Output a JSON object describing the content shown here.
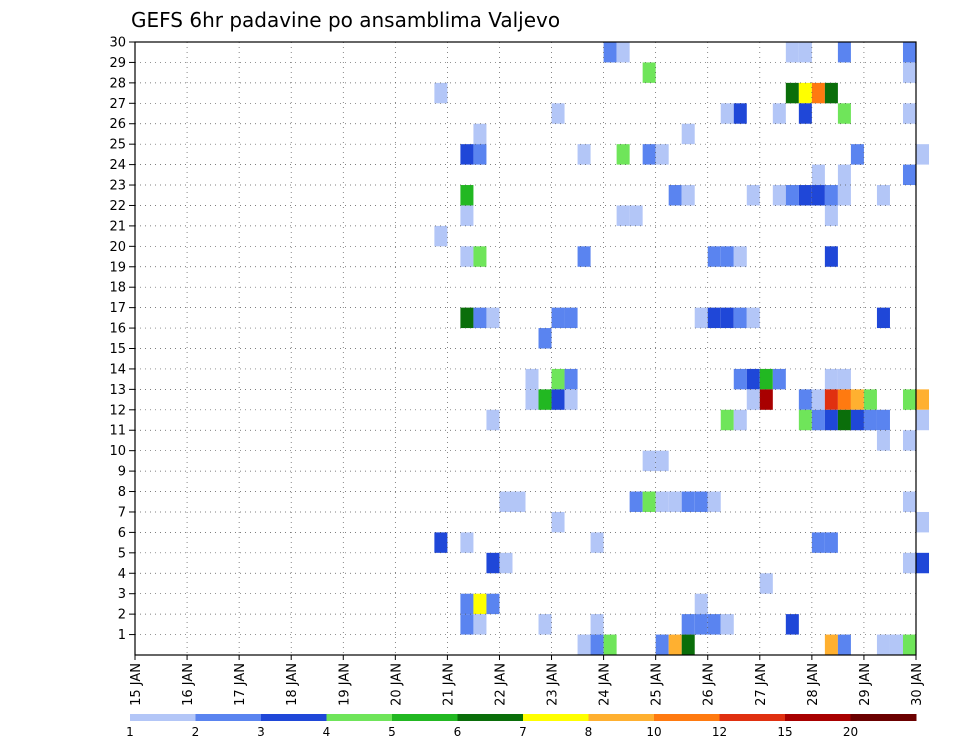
{
  "chart_data": {
    "type": "heatmap",
    "title": "GEFS 6hr padavine po ansamblima Valjevo",
    "xlabel": "",
    "ylabel": "",
    "x_tick_labels": [
      "15 JAN",
      "16 JAN",
      "17 JAN",
      "18 JAN",
      "19 JAN",
      "20 JAN",
      "21 JAN",
      "22 JAN",
      "23 JAN",
      "24 JAN",
      "25 JAN",
      "26 JAN",
      "27 JAN",
      "28 JAN",
      "29 JAN",
      "30 JAN"
    ],
    "y_tick_labels": [
      "1",
      "2",
      "3",
      "4",
      "5",
      "6",
      "7",
      "8",
      "9",
      "10",
      "11",
      "12",
      "13",
      "14",
      "15",
      "16",
      "17",
      "18",
      "19",
      "20",
      "21",
      "22",
      "23",
      "24",
      "25",
      "26",
      "27",
      "28",
      "29",
      "30"
    ],
    "xlim": [
      "15 JAN",
      "30 JAN"
    ],
    "ylim": [
      0,
      30
    ],
    "grid": true,
    "colorbar": {
      "levels": [
        "1",
        "2",
        "3",
        "4",
        "5",
        "6",
        "7",
        "8",
        "10",
        "12",
        "15",
        "20"
      ],
      "colors": [
        "#b3c6f7",
        "#5a84f0",
        "#1f47d8",
        "#6fe55a",
        "#22b822",
        "#0a6e0a",
        "#ffff00",
        "#ffb030",
        "#ff7a10",
        "#e03010",
        "#a80000",
        "#6b0000"
      ]
    },
    "cells": [
      {
        "member": 30,
        "time": "24 JAN 00",
        "level": 2
      },
      {
        "member": 30,
        "time": "24 JAN 06",
        "level": 1
      },
      {
        "member": 30,
        "time": "27 JAN 12",
        "level": 1
      },
      {
        "member": 30,
        "time": "27 JAN 18",
        "level": 1
      },
      {
        "member": 30,
        "time": "28 JAN 12",
        "level": 2
      },
      {
        "member": 30,
        "time": "29 JAN 18",
        "level": 2
      },
      {
        "member": 29,
        "time": "24 JAN 18",
        "level": 4
      },
      {
        "member": 29,
        "time": "29 JAN 18",
        "level": 1
      },
      {
        "member": 28,
        "time": "20 JAN 18",
        "level": 1
      },
      {
        "member": 28,
        "time": "27 JAN 12",
        "level": 6
      },
      {
        "member": 28,
        "time": "27 JAN 18",
        "level": 7
      },
      {
        "member": 28,
        "time": "28 JAN 00",
        "level": 10
      },
      {
        "member": 28,
        "time": "28 JAN 06",
        "level": 6
      },
      {
        "member": 27,
        "time": "23 JAN 00",
        "level": 1
      },
      {
        "member": 27,
        "time": "26 JAN 06",
        "level": 1
      },
      {
        "member": 27,
        "time": "26 JAN 12",
        "level": 3
      },
      {
        "member": 27,
        "time": "27 JAN 06",
        "level": 1
      },
      {
        "member": 27,
        "time": "27 JAN 18",
        "level": 3
      },
      {
        "member": 27,
        "time": "28 JAN 12",
        "level": 4
      },
      {
        "member": 27,
        "time": "29 JAN 18",
        "level": 1
      },
      {
        "member": 26,
        "time": "21 JAN 12",
        "level": 1
      },
      {
        "member": 26,
        "time": "25 JAN 12",
        "level": 1
      },
      {
        "member": 25,
        "time": "21 JAN 06",
        "level": 3
      },
      {
        "member": 25,
        "time": "21 JAN 12",
        "level": 2
      },
      {
        "member": 25,
        "time": "23 JAN 12",
        "level": 1
      },
      {
        "member": 25,
        "time": "24 JAN 06",
        "level": 4
      },
      {
        "member": 25,
        "time": "24 JAN 18",
        "level": 2
      },
      {
        "member": 25,
        "time": "25 JAN 00",
        "level": 1
      },
      {
        "member": 25,
        "time": "28 JAN 18",
        "level": 2
      },
      {
        "member": 25,
        "time": "30 JAN 00",
        "level": 1
      },
      {
        "member": 24,
        "time": "28 JAN 00",
        "level": 1
      },
      {
        "member": 24,
        "time": "28 JAN 12",
        "level": 1
      },
      {
        "member": 24,
        "time": "29 JAN 18",
        "level": 2
      },
      {
        "member": 23,
        "time": "21 JAN 06",
        "level": 5
      },
      {
        "member": 23,
        "time": "25 JAN 06",
        "level": 2
      },
      {
        "member": 23,
        "time": "25 JAN 12",
        "level": 1
      },
      {
        "member": 23,
        "time": "26 JAN 18",
        "level": 1
      },
      {
        "member": 23,
        "time": "27 JAN 06",
        "level": 1
      },
      {
        "member": 23,
        "time": "27 JAN 12",
        "level": 2
      },
      {
        "member": 23,
        "time": "27 JAN 18",
        "level": 3
      },
      {
        "member": 23,
        "time": "28 JAN 00",
        "level": 3
      },
      {
        "member": 23,
        "time": "28 JAN 06",
        "level": 2
      },
      {
        "member": 23,
        "time": "28 JAN 12",
        "level": 1
      },
      {
        "member": 23,
        "time": "29 JAN 06",
        "level": 1
      },
      {
        "member": 22,
        "time": "21 JAN 06",
        "level": 1
      },
      {
        "member": 22,
        "time": "24 JAN 06",
        "level": 1
      },
      {
        "member": 22,
        "time": "24 JAN 12",
        "level": 1
      },
      {
        "member": 22,
        "time": "28 JAN 06",
        "level": 1
      },
      {
        "member": 21,
        "time": "20 JAN 18",
        "level": 1
      },
      {
        "member": 20,
        "time": "21 JAN 06",
        "level": 1
      },
      {
        "member": 20,
        "time": "21 JAN 12",
        "level": 4
      },
      {
        "member": 20,
        "time": "23 JAN 12",
        "level": 2
      },
      {
        "member": 20,
        "time": "26 JAN 00",
        "level": 2
      },
      {
        "member": 20,
        "time": "26 JAN 06",
        "level": 2
      },
      {
        "member": 20,
        "time": "26 JAN 12",
        "level": 1
      },
      {
        "member": 20,
        "time": "28 JAN 06",
        "level": 3
      },
      {
        "member": 17,
        "time": "21 JAN 06",
        "level": 6
      },
      {
        "member": 17,
        "time": "21 JAN 12",
        "level": 2
      },
      {
        "member": 17,
        "time": "21 JAN 18",
        "level": 1
      },
      {
        "member": 17,
        "time": "23 JAN 00",
        "level": 2
      },
      {
        "member": 17,
        "time": "23 JAN 06",
        "level": 2
      },
      {
        "member": 17,
        "time": "25 JAN 18",
        "level": 1
      },
      {
        "member": 17,
        "time": "26 JAN 00",
        "level": 3
      },
      {
        "member": 17,
        "time": "26 JAN 06",
        "level": 3
      },
      {
        "member": 17,
        "time": "26 JAN 12",
        "level": 2
      },
      {
        "member": 17,
        "time": "26 JAN 18",
        "level": 1
      },
      {
        "member": 17,
        "time": "29 JAN 06",
        "level": 3
      },
      {
        "member": 16,
        "time": "22 JAN 18",
        "level": 2
      },
      {
        "member": 14,
        "time": "22 JAN 12",
        "level": 1
      },
      {
        "member": 14,
        "time": "23 JAN 00",
        "level": 4
      },
      {
        "member": 14,
        "time": "23 JAN 06",
        "level": 2
      },
      {
        "member": 14,
        "time": "26 JAN 12",
        "level": 2
      },
      {
        "member": 14,
        "time": "26 JAN 18",
        "level": 3
      },
      {
        "member": 14,
        "time": "27 JAN 00",
        "level": 5
      },
      {
        "member": 14,
        "time": "27 JAN 06",
        "level": 2
      },
      {
        "member": 14,
        "time": "28 JAN 06",
        "level": 1
      },
      {
        "member": 14,
        "time": "28 JAN 12",
        "level": 1
      },
      {
        "member": 13,
        "time": "22 JAN 12",
        "level": 1
      },
      {
        "member": 13,
        "time": "22 JAN 18",
        "level": 5
      },
      {
        "member": 13,
        "time": "23 JAN 00",
        "level": 3
      },
      {
        "member": 13,
        "time": "23 JAN 06",
        "level": 1
      },
      {
        "member": 13,
        "time": "26 JAN 18",
        "level": 1
      },
      {
        "member": 13,
        "time": "27 JAN 00",
        "level": 15
      },
      {
        "member": 13,
        "time": "27 JAN 18",
        "level": 2
      },
      {
        "member": 13,
        "time": "28 JAN 00",
        "level": 1
      },
      {
        "member": 13,
        "time": "28 JAN 06",
        "level": 12
      },
      {
        "member": 13,
        "time": "28 JAN 12",
        "level": 10
      },
      {
        "member": 13,
        "time": "28 JAN 18",
        "level": 8
      },
      {
        "member": 13,
        "time": "29 JAN 00",
        "level": 4
      },
      {
        "member": 13,
        "time": "29 JAN 18",
        "level": 4
      },
      {
        "member": 13,
        "time": "30 JAN 00",
        "level": 8
      },
      {
        "member": 12,
        "time": "21 JAN 18",
        "level": 1
      },
      {
        "member": 12,
        "time": "26 JAN 06",
        "level": 4
      },
      {
        "member": 12,
        "time": "26 JAN 12",
        "level": 1
      },
      {
        "member": 12,
        "time": "27 JAN 18",
        "level": 4
      },
      {
        "member": 12,
        "time": "28 JAN 00",
        "level": 2
      },
      {
        "member": 12,
        "time": "28 JAN 06",
        "level": 3
      },
      {
        "member": 12,
        "time": "28 JAN 12",
        "level": 6
      },
      {
        "member": 12,
        "time": "28 JAN 18",
        "level": 3
      },
      {
        "member": 12,
        "time": "29 JAN 00",
        "level": 2
      },
      {
        "member": 12,
        "time": "29 JAN 06",
        "level": 2
      },
      {
        "member": 12,
        "time": "30 JAN 00",
        "level": 1
      },
      {
        "member": 11,
        "time": "29 JAN 06",
        "level": 1
      },
      {
        "member": 11,
        "time": "29 JAN 18",
        "level": 1
      },
      {
        "member": 10,
        "time": "24 JAN 18",
        "level": 1
      },
      {
        "member": 10,
        "time": "25 JAN 00",
        "level": 1
      },
      {
        "member": 8,
        "time": "24 JAN 12",
        "level": 2
      },
      {
        "member": 8,
        "time": "24 JAN 18",
        "level": 4
      },
      {
        "member": 8,
        "time": "25 JAN 00",
        "level": 1
      },
      {
        "member": 8,
        "time": "25 JAN 06",
        "level": 1
      },
      {
        "member": 8,
        "time": "25 JAN 12",
        "level": 2
      },
      {
        "member": 8,
        "time": "25 JAN 18",
        "level": 2
      },
      {
        "member": 8,
        "time": "26 JAN 00",
        "level": 1
      },
      {
        "member": 8,
        "time": "22 JAN 00",
        "level": 1
      },
      {
        "member": 8,
        "time": "22 JAN 06",
        "level": 1
      },
      {
        "member": 8,
        "time": "29 JAN 18",
        "level": 1
      },
      {
        "member": 7,
        "time": "23 JAN 00",
        "level": 1
      },
      {
        "member": 7,
        "time": "30 JAN 00",
        "level": 1
      },
      {
        "member": 6,
        "time": "20 JAN 18",
        "level": 3
      },
      {
        "member": 6,
        "time": "21 JAN 06",
        "level": 1
      },
      {
        "member": 6,
        "time": "23 JAN 18",
        "level": 1
      },
      {
        "member": 6,
        "time": "28 JAN 00",
        "level": 2
      },
      {
        "member": 6,
        "time": "28 JAN 06",
        "level": 2
      },
      {
        "member": 5,
        "time": "21 JAN 18",
        "level": 3
      },
      {
        "member": 5,
        "time": "22 JAN 00",
        "level": 1
      },
      {
        "member": 5,
        "time": "29 JAN 18",
        "level": 1
      },
      {
        "member": 5,
        "time": "30 JAN 00",
        "level": 3
      },
      {
        "member": 4,
        "time": "27 JAN 00",
        "level": 1
      },
      {
        "member": 3,
        "time": "21 JAN 06",
        "level": 2
      },
      {
        "member": 3,
        "time": "21 JAN 12",
        "level": 7
      },
      {
        "member": 3,
        "time": "21 JAN 18",
        "level": 2
      },
      {
        "member": 3,
        "time": "25 JAN 18",
        "level": 1
      },
      {
        "member": 2,
        "time": "21 JAN 06",
        "level": 2
      },
      {
        "member": 2,
        "time": "21 JAN 12",
        "level": 1
      },
      {
        "member": 2,
        "time": "22 JAN 18",
        "level": 1
      },
      {
        "member": 2,
        "time": "23 JAN 18",
        "level": 1
      },
      {
        "member": 2,
        "time": "25 JAN 12",
        "level": 2
      },
      {
        "member": 2,
        "time": "25 JAN 18",
        "level": 2
      },
      {
        "member": 2,
        "time": "26 JAN 00",
        "level": 2
      },
      {
        "member": 2,
        "time": "26 JAN 06",
        "level": 1
      },
      {
        "member": 2,
        "time": "27 JAN 12",
        "level": 3
      },
      {
        "member": 1,
        "time": "23 JAN 12",
        "level": 1
      },
      {
        "member": 1,
        "time": "23 JAN 18",
        "level": 2
      },
      {
        "member": 1,
        "time": "24 JAN 00",
        "level": 4
      },
      {
        "member": 1,
        "time": "25 JAN 00",
        "level": 2
      },
      {
        "member": 1,
        "time": "25 JAN 06",
        "level": 8
      },
      {
        "member": 1,
        "time": "25 JAN 12",
        "level": 6
      },
      {
        "member": 1,
        "time": "28 JAN 06",
        "level": 8
      },
      {
        "member": 1,
        "time": "28 JAN 12",
        "level": 2
      },
      {
        "member": 1,
        "time": "29 JAN 06",
        "level": 1
      },
      {
        "member": 1,
        "time": "29 JAN 12",
        "level": 1
      },
      {
        "member": 1,
        "time": "29 JAN 18",
        "level": 4
      }
    ]
  }
}
